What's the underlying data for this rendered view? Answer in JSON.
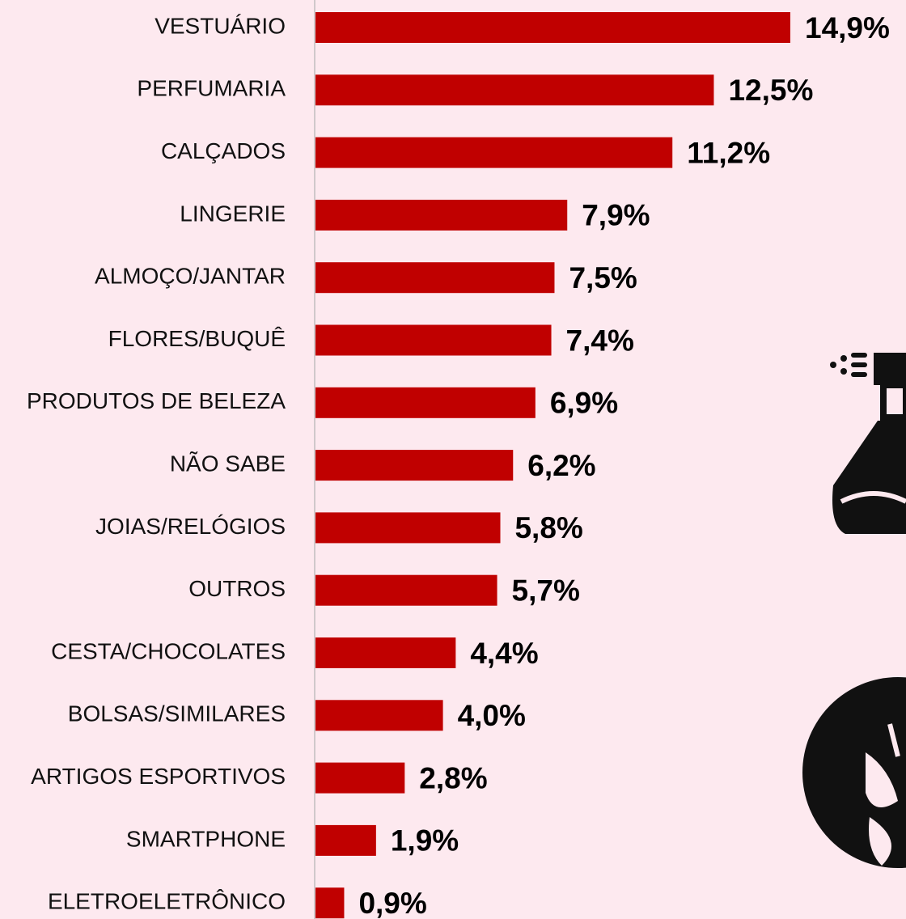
{
  "chart_data": {
    "type": "bar",
    "orientation": "horizontal",
    "color": "#c00000",
    "categories": [
      "VESTUÁRIO",
      "PERFUMARIA",
      "CALÇADOS",
      "LINGERIE",
      "ALMOÇO/JANTAR",
      "FLORES/BUQUÊ",
      "PRODUTOS DE BELEZA",
      "NÃO SABE",
      "JOIAS/RELÓGIOS",
      "OUTROS",
      "CESTA/CHOCOLATES",
      "BOLSAS/SIMILARES",
      "ARTIGOS ESPORTIVOS",
      "SMARTPHONE",
      "ELETROELETRÔNICO"
    ],
    "values": [
      14.9,
      12.5,
      11.2,
      7.9,
      7.5,
      7.4,
      6.9,
      6.2,
      5.8,
      5.7,
      4.4,
      4.0,
      2.8,
      1.9,
      0.9
    ],
    "value_labels": [
      "14,9%",
      "12,5%",
      "11,2%",
      "7,9%",
      "7,5%",
      "7,4%",
      "6,9%",
      "6,2%",
      "5,8%",
      "5,7%",
      "4,4%",
      "4,0%",
      "2,8%",
      "1,9%",
      "0,9%"
    ]
  }
}
